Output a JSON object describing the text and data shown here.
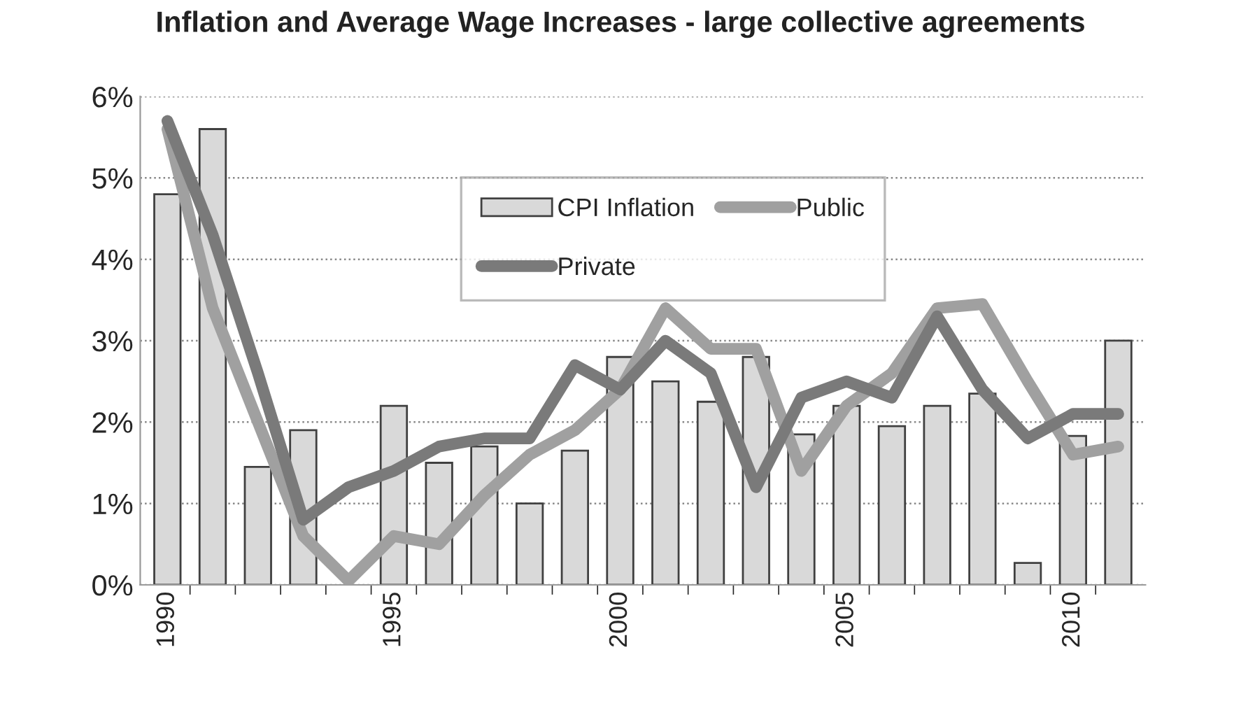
{
  "chart_data": {
    "type": "bar",
    "title": "Inflation and Average Wage Increases - large collective agreements",
    "categories": [
      "1990",
      null,
      null,
      null,
      null,
      "1995",
      null,
      null,
      null,
      null,
      "2000",
      null,
      null,
      null,
      null,
      "2005",
      null,
      null,
      null,
      null,
      "2010",
      null
    ],
    "series": [
      {
        "name": "CPI Inflation",
        "color": "#d9d9d9",
        "values": [
          4.8,
          5.6,
          1.45,
          1.9,
          null,
          2.2,
          1.5,
          1.7,
          1.0,
          1.65,
          2.8,
          2.5,
          2.25,
          2.8,
          1.85,
          2.2,
          1.95,
          2.2,
          2.35,
          0.27,
          1.83,
          3.0
        ]
      },
      {
        "name": "Public",
        "type": "line",
        "color": "#a0a0a0",
        "values": [
          5.6,
          3.4,
          2.0,
          0.6,
          0.05,
          0.6,
          0.5,
          1.1,
          1.6,
          1.9,
          2.4,
          3.4,
          2.9,
          2.9,
          1.4,
          2.2,
          2.6,
          3.4,
          3.45,
          2.5,
          1.6,
          1.7
        ]
      },
      {
        "name": "Private",
        "type": "line",
        "color": "#7a7a7a",
        "values": [
          5.7,
          4.3,
          2.6,
          0.8,
          1.2,
          1.4,
          1.7,
          1.8,
          1.8,
          2.7,
          2.4,
          3.0,
          2.6,
          1.2,
          2.3,
          2.5,
          2.3,
          3.3,
          2.4,
          1.8,
          2.1,
          2.1
        ]
      }
    ],
    "ylim": [
      0,
      6
    ],
    "yticks": [
      {
        "value": 0,
        "label": "0%"
      },
      {
        "value": 1,
        "label": "1%"
      },
      {
        "value": 2,
        "label": "2%"
      },
      {
        "value": 3,
        "label": "3%"
      },
      {
        "value": 4,
        "label": "4%"
      },
      {
        "value": 5,
        "label": "5%"
      },
      {
        "value": 6,
        "label": "6%"
      }
    ],
    "grid": "y",
    "legend": "top",
    "marker": "none",
    "line_style": "solid"
  }
}
